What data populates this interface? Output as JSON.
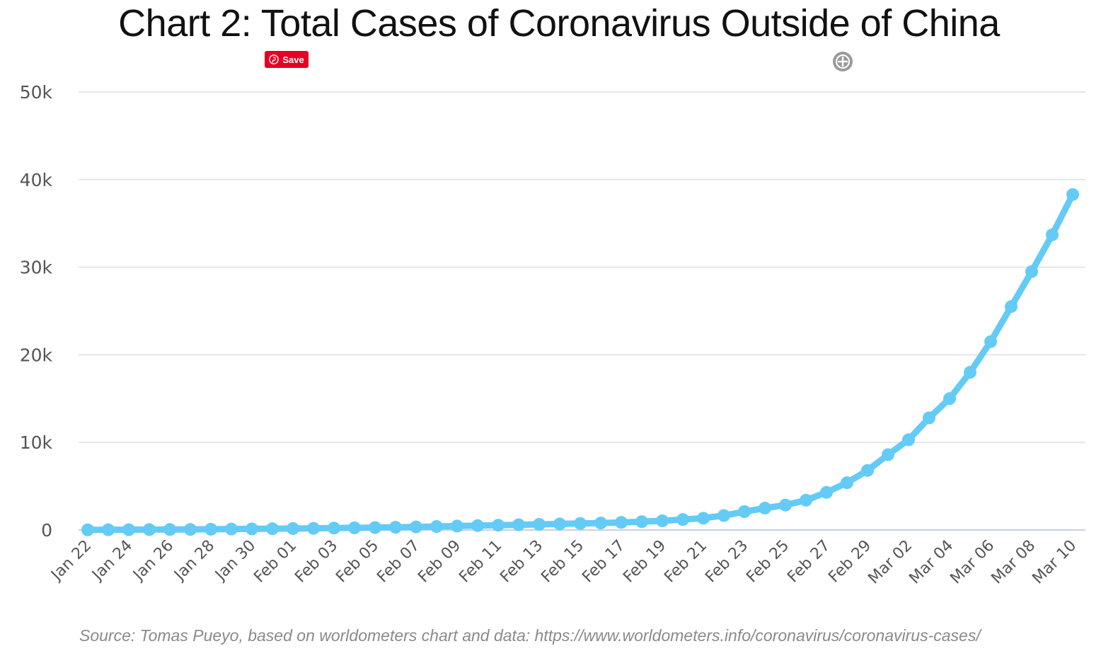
{
  "chart_data": {
    "type": "line",
    "title": "Chart 2: Total Cases of Coronavirus Outside of China",
    "xlabel": "",
    "ylabel": "",
    "ylim": [
      0,
      50000
    ],
    "grid": true,
    "y_ticks": [
      "0",
      "10k",
      "20k",
      "30k",
      "40k",
      "50k"
    ],
    "x_tick_labels": [
      "Jan 22",
      "Jan 24",
      "Jan 26",
      "Jan 28",
      "Jan 30",
      "Feb 01",
      "Feb 03",
      "Feb 05",
      "Feb 07",
      "Feb 09",
      "Feb 11",
      "Feb 13",
      "Feb 15",
      "Feb 17",
      "Feb 19",
      "Feb 21",
      "Feb 23",
      "Feb 25",
      "Feb 27",
      "Feb 29",
      "Mar 02",
      "Mar 04",
      "Mar 06",
      "Mar 08",
      "Mar 10"
    ],
    "line_color": "#64cbf7",
    "series": [
      {
        "x": [
          "Jan 22",
          "Jan 23",
          "Jan 24",
          "Jan 25",
          "Jan 26",
          "Jan 27",
          "Jan 28",
          "Jan 29",
          "Jan 30",
          "Jan 31",
          "Feb 01",
          "Feb 02",
          "Feb 03",
          "Feb 04",
          "Feb 05",
          "Feb 06",
          "Feb 07",
          "Feb 08",
          "Feb 09",
          "Feb 10",
          "Feb 11",
          "Feb 12",
          "Feb 13",
          "Feb 14",
          "Feb 15",
          "Feb 16",
          "Feb 17",
          "Feb 18",
          "Feb 19",
          "Feb 20",
          "Feb 21",
          "Feb 22",
          "Feb 23",
          "Feb 24",
          "Feb 25",
          "Feb 26",
          "Feb 27",
          "Feb 28",
          "Feb 29",
          "Mar 01",
          "Mar 02",
          "Mar 03",
          "Mar 04",
          "Mar 05",
          "Mar 06",
          "Mar 07",
          "Mar 08",
          "Mar 09",
          "Mar 10"
        ],
        "values": [
          20,
          30,
          40,
          50,
          60,
          70,
          90,
          110,
          130,
          150,
          170,
          190,
          220,
          250,
          280,
          310,
          350,
          400,
          450,
          500,
          550,
          600,
          650,
          700,
          750,
          800,
          870,
          950,
          1050,
          1200,
          1350,
          1650,
          2100,
          2500,
          2850,
          3400,
          4300,
          5400,
          6800,
          8600,
          10300,
          12800,
          15000,
          18000,
          21500,
          25500,
          29500,
          33700,
          38300
        ]
      }
    ]
  },
  "pin_button": {
    "label": "Save"
  },
  "source": "Source: Tomas Pueyo, based on worldometers chart and data: https://www.worldometers.info/coronavirus/coronavirus-cases/"
}
